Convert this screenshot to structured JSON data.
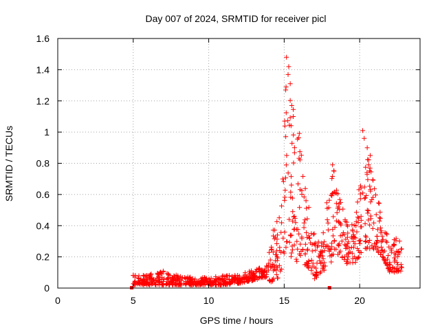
{
  "chart_data": {
    "type": "scatter",
    "title": "Day 007 of 2024, SRMTID for receiver picl",
    "xlabel": "GPS time / hours",
    "ylabel": "SRMTID / TECUs",
    "xlim": [
      0,
      24
    ],
    "ylim": [
      0,
      1.6
    ],
    "x_ticks": [
      "0",
      "5",
      "10",
      "15",
      "20"
    ],
    "y_ticks": [
      "0",
      "0.2",
      "0.4",
      "0.6",
      "0.8",
      "1",
      "1.2",
      "1.4",
      "1.6"
    ],
    "x_tick_values": [
      0,
      5,
      10,
      15,
      20
    ],
    "y_tick_values": [
      0,
      0.2,
      0.4,
      0.6,
      0.8,
      1.0,
      1.2,
      1.4,
      1.6
    ],
    "grid": true,
    "marker": "plus",
    "color": "#ff0000",
    "series": [
      {
        "name": "SRMTID",
        "envelope": [
          {
            "x": 5.0,
            "lo": 0.02,
            "hi": 0.09
          },
          {
            "x": 6.0,
            "lo": 0.02,
            "hi": 0.09
          },
          {
            "x": 7.0,
            "lo": 0.02,
            "hi": 0.11
          },
          {
            "x": 8.0,
            "lo": 0.02,
            "hi": 0.08
          },
          {
            "x": 9.0,
            "lo": 0.02,
            "hi": 0.07
          },
          {
            "x": 10.0,
            "lo": 0.02,
            "hi": 0.07
          },
          {
            "x": 11.0,
            "lo": 0.02,
            "hi": 0.08
          },
          {
            "x": 12.0,
            "lo": 0.03,
            "hi": 0.09
          },
          {
            "x": 13.0,
            "lo": 0.05,
            "hi": 0.12
          },
          {
            "x": 13.8,
            "lo": 0.07,
            "hi": 0.14
          },
          {
            "x": 14.3,
            "lo": 0.02,
            "hi": 0.4
          },
          {
            "x": 14.8,
            "lo": 0.1,
            "hi": 0.6
          },
          {
            "x": 15.2,
            "lo": 0.2,
            "hi": 1.48
          },
          {
            "x": 15.6,
            "lo": 0.2,
            "hi": 1.2
          },
          {
            "x": 16.0,
            "lo": 0.15,
            "hi": 1.0
          },
          {
            "x": 16.5,
            "lo": 0.15,
            "hi": 0.6
          },
          {
            "x": 17.0,
            "lo": 0.05,
            "hi": 0.35
          },
          {
            "x": 17.5,
            "lo": 0.1,
            "hi": 0.3
          },
          {
            "x": 18.0,
            "lo": 0.15,
            "hi": 0.7
          },
          {
            "x": 18.4,
            "lo": 0.2,
            "hi": 0.8
          },
          {
            "x": 18.8,
            "lo": 0.2,
            "hi": 0.55
          },
          {
            "x": 19.2,
            "lo": 0.15,
            "hi": 0.45
          },
          {
            "x": 19.6,
            "lo": 0.15,
            "hi": 0.4
          },
          {
            "x": 20.0,
            "lo": 0.2,
            "hi": 0.7
          },
          {
            "x": 20.2,
            "lo": 0.25,
            "hi": 1.02
          },
          {
            "x": 20.6,
            "lo": 0.25,
            "hi": 0.9
          },
          {
            "x": 21.0,
            "lo": 0.25,
            "hi": 0.7
          },
          {
            "x": 21.5,
            "lo": 0.2,
            "hi": 0.45
          },
          {
            "x": 22.0,
            "lo": 0.1,
            "hi": 0.3
          },
          {
            "x": 22.5,
            "lo": 0.1,
            "hi": 0.35
          },
          {
            "x": 22.8,
            "lo": 0.1,
            "hi": 0.25
          }
        ],
        "peaks": [
          {
            "x": 15.15,
            "y": 1.48
          },
          {
            "x": 15.3,
            "y": 1.42
          },
          {
            "x": 15.4,
            "y": 1.31
          },
          {
            "x": 15.1,
            "y": 1.27
          },
          {
            "x": 15.5,
            "y": 1.17
          },
          {
            "x": 15.6,
            "y": 1.1
          },
          {
            "x": 18.2,
            "y": 0.79
          },
          {
            "x": 18.3,
            "y": 0.75
          },
          {
            "x": 20.2,
            "y": 1.01
          },
          {
            "x": 20.3,
            "y": 0.96
          },
          {
            "x": 20.5,
            "y": 0.9
          },
          {
            "x": 20.7,
            "y": 0.85
          }
        ]
      }
    ],
    "markers_on_axis": [
      {
        "x": 4.9,
        "y": 0
      },
      {
        "x": 18.0,
        "y": 0
      }
    ]
  }
}
